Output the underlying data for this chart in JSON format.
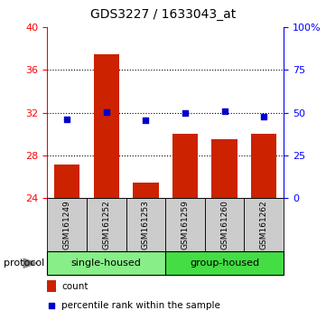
{
  "title": "GDS3227 / 1633043_at",
  "samples": [
    "GSM161249",
    "GSM161252",
    "GSM161253",
    "GSM161259",
    "GSM161260",
    "GSM161262"
  ],
  "bar_values": [
    27.2,
    37.5,
    25.5,
    30.0,
    29.5,
    30.0
  ],
  "percentile_values": [
    46,
    50.5,
    45.5,
    50.0,
    51.0,
    48.0
  ],
  "bar_color": "#cc2200",
  "dot_color": "#0000cc",
  "ylim_left": [
    24,
    40
  ],
  "ylim_right": [
    0,
    100
  ],
  "yticks_left": [
    24,
    28,
    32,
    36,
    40
  ],
  "yticks_right": [
    0,
    25,
    50,
    75,
    100
  ],
  "ytick_labels_right": [
    "0",
    "25",
    "50",
    "75",
    "100%"
  ],
  "groups": [
    {
      "label": "single-housed",
      "indices": [
        0,
        1,
        2
      ],
      "color": "#88ee88"
    },
    {
      "label": "group-housed",
      "indices": [
        3,
        4,
        5
      ],
      "color": "#44dd44"
    }
  ],
  "protocol_label": "protocol",
  "legend_items": [
    {
      "color": "#cc2200",
      "label": "count"
    },
    {
      "color": "#0000cc",
      "label": "percentile rank within the sample"
    }
  ],
  "bar_width": 0.65,
  "grid_lines": [
    28,
    32,
    36
  ],
  "sample_box_color": "#cccccc",
  "title_fontsize": 10,
  "tick_fontsize": 8,
  "sample_fontsize": 6.5,
  "group_fontsize": 8,
  "legend_fontsize": 7.5
}
